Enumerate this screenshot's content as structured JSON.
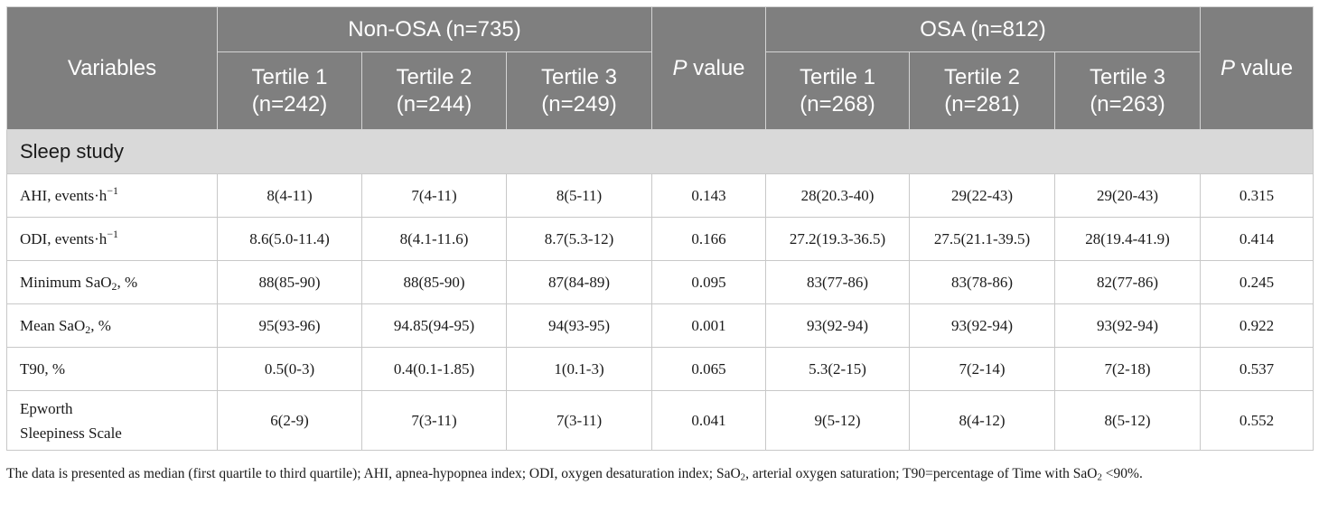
{
  "header": {
    "variables": "Variables",
    "group_non_osa": "Non-OSA (n=735)",
    "group_osa": "OSA (n=812)",
    "p_label_italic": "P",
    "p_label_rest": " value",
    "non_osa_tertiles": [
      {
        "name": "Tertile 1",
        "n": "(n=242)"
      },
      {
        "name": "Tertile 2",
        "n": "(n=244)"
      },
      {
        "name": "Tertile 3",
        "n": "(n=249)"
      }
    ],
    "osa_tertiles": [
      {
        "name": "Tertile 1",
        "n": "(n=268)"
      },
      {
        "name": "Tertile 2",
        "n": "(n=281)"
      },
      {
        "name": "Tertile 3",
        "n": "(n=263)"
      }
    ]
  },
  "section": {
    "title": "Sleep study"
  },
  "rows": [
    {
      "label": "AHI, events·h",
      "sup": "−1",
      "cells": [
        "8(4-11)",
        "7(4-11)",
        "8(5-11)",
        "0.143",
        "28(20.3-40)",
        "29(22-43)",
        "29(20-43)",
        "0.315"
      ]
    },
    {
      "label": "ODI, events·h",
      "sup": "−1",
      "cells": [
        "8.6(5.0-11.4)",
        "8(4.1-11.6)",
        "8.7(5.3-12)",
        "0.166",
        "27.2(19.3-36.5)",
        "27.5(21.1-39.5)",
        "28(19.4-41.9)",
        "0.414"
      ]
    },
    {
      "label_pre": "Minimum SaO",
      "sub": "2",
      "label_post": ", %",
      "cells": [
        "88(85-90)",
        "88(85-90)",
        "87(84-89)",
        "0.095",
        "83(77-86)",
        "83(78-86)",
        "82(77-86)",
        "0.245"
      ]
    },
    {
      "label_pre": "Mean SaO",
      "sub": "2",
      "label_post": ", %",
      "cells": [
        "95(93-96)",
        "94.85(94-95)",
        "94(93-95)",
        "0.001",
        "93(92-94)",
        "93(92-94)",
        "93(92-94)",
        "0.922"
      ]
    },
    {
      "label": "T90, %",
      "cells": [
        "0.5(0-3)",
        "0.4(0.1-1.85)",
        "1(0.1-3)",
        "0.065",
        "5.3(2-15)",
        "7(2-14)",
        "7(2-18)",
        "0.537"
      ]
    },
    {
      "label_line1": "Epworth",
      "label_line2": "Sleepiness Scale",
      "cells": [
        "6(2-9)",
        "7(3-11)",
        "7(3-11)",
        "0.041",
        "9(5-12)",
        "8(4-12)",
        "8(5-12)",
        "0.552"
      ]
    }
  ],
  "footnote": {
    "part1": "The data is presented as median (first quartile to third quartile); AHI, apnea-hypopnea index; ODI, oxygen desaturation index; SaO",
    "sub1": "2",
    "part2": ", arterial oxygen saturation; T90=percentage of Time with SaO",
    "sub2": "2",
    "part3": " <90%."
  }
}
